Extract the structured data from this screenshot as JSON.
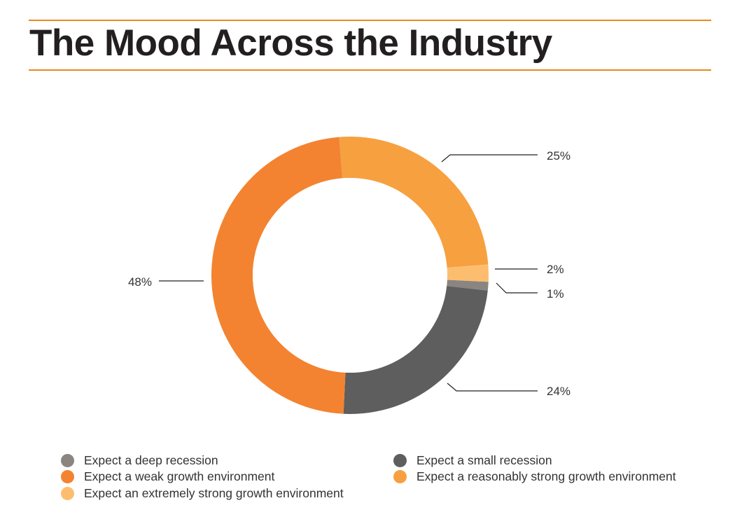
{
  "title": "The Mood Across the Industry",
  "colors": {
    "rule": "#e8891f",
    "deep_recession": "#8a8580",
    "small_recession": "#5e5e5e",
    "weak_growth": "#f38330",
    "reasonably_strong": "#f7a040",
    "extremely_strong": "#fcbe6e"
  },
  "chart_data": {
    "type": "pie",
    "variant": "donut",
    "title": "The Mood Across the Industry",
    "slices": [
      {
        "label": "Expect a reasonably strong growth environment",
        "value": 25,
        "display": "25%",
        "color": "#f7a040"
      },
      {
        "label": "Expect an extremely strong growth environment",
        "value": 2,
        "display": "2%",
        "color": "#fcbe6e"
      },
      {
        "label": "Expect a deep recession",
        "value": 1,
        "display": "1%",
        "color": "#8a8580"
      },
      {
        "label": "Expect a small recession",
        "value": 24,
        "display": "24%",
        "color": "#5e5e5e"
      },
      {
        "label": "Expect a weak growth environment",
        "value": 48,
        "display": "48%",
        "color": "#f38330"
      }
    ],
    "legend": [
      {
        "label": "Expect a deep recession",
        "color": "#8a8580"
      },
      {
        "label": "Expect a small recession",
        "color": "#5e5e5e"
      },
      {
        "label": "Expect a weak growth environment",
        "color": "#f38330"
      },
      {
        "label": "Expect a reasonably strong growth environment",
        "color": "#f7a040"
      },
      {
        "label": "Expect an extremely strong growth environment",
        "color": "#fcbe6e"
      }
    ],
    "legend_position": "bottom"
  }
}
